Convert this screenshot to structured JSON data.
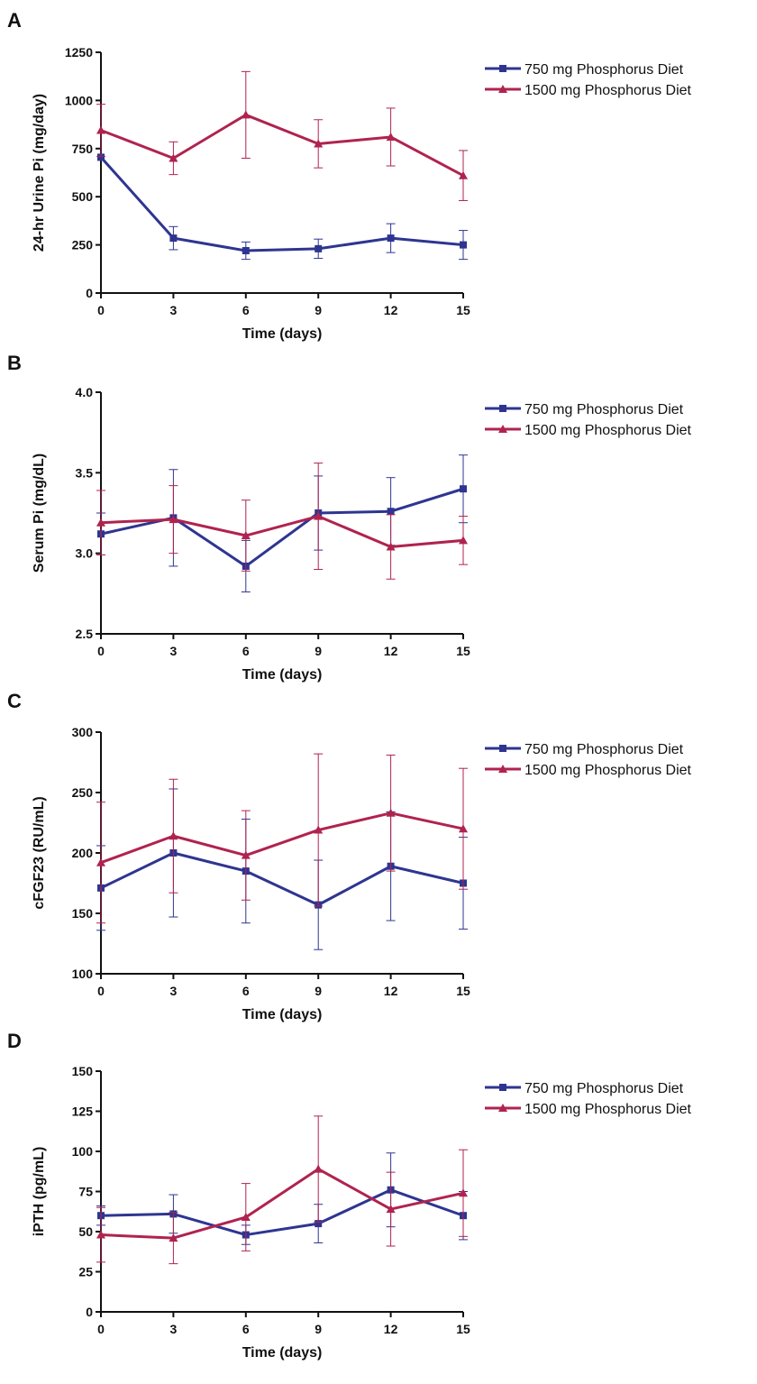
{
  "colors": {
    "s750": "#2e3590",
    "s1500": "#b0234f",
    "axis": "#111111"
  },
  "chart_data": [
    {
      "type": "line",
      "panel": "A",
      "xlabel": "Time (days)",
      "ylabel": "24-hr Urine Pi (mg/day)",
      "x": [
        0,
        3,
        6,
        9,
        12,
        15
      ],
      "x_ticks": [
        "0",
        "3",
        "6",
        "9",
        "12",
        "15"
      ],
      "xlim": [
        0,
        15
      ],
      "ylim": [
        0,
        1250
      ],
      "y_ticks": [
        0,
        250,
        500,
        750,
        1000,
        1250
      ],
      "y_tick_labels": [
        "0",
        "250",
        "500",
        "750",
        "1000",
        "1250"
      ],
      "legend_position": "top-right",
      "series": [
        {
          "name": "750 mg Phosphorus Diet",
          "marker": "square",
          "values": [
            705,
            285,
            220,
            230,
            285,
            250
          ],
          "errors": [
            0,
            60,
            45,
            50,
            75,
            75
          ]
        },
        {
          "name": "1500 mg Phosphorus Diet",
          "marker": "triangle",
          "values": [
            845,
            700,
            925,
            775,
            810,
            610
          ],
          "errors": [
            135,
            85,
            225,
            125,
            150,
            130
          ]
        }
      ]
    },
    {
      "type": "line",
      "panel": "B",
      "xlabel": "Time (days)",
      "ylabel": "Serum Pi (mg/dL)",
      "x": [
        0,
        3,
        6,
        9,
        12,
        15
      ],
      "x_ticks": [
        "0",
        "3",
        "6",
        "9",
        "12",
        "15"
      ],
      "xlim": [
        0,
        15
      ],
      "ylim": [
        2.5,
        4.0
      ],
      "y_ticks": [
        2.5,
        3.0,
        3.5,
        4.0
      ],
      "y_tick_labels": [
        "2.5",
        "3.0",
        "3.5",
        "4.0"
      ],
      "legend_position": "top-right",
      "series": [
        {
          "name": "750 mg Phosphorus Diet",
          "marker": "square",
          "values": [
            3.12,
            3.22,
            2.92,
            3.25,
            3.26,
            3.4
          ],
          "errors": [
            0.13,
            0.3,
            0.16,
            0.23,
            0.21,
            0.21
          ]
        },
        {
          "name": "1500 mg Phosphorus Diet",
          "marker": "triangle",
          "values": [
            3.19,
            3.21,
            3.11,
            3.23,
            3.04,
            3.08
          ],
          "errors": [
            0.2,
            0.21,
            0.22,
            0.33,
            0.2,
            0.15
          ]
        }
      ]
    },
    {
      "type": "line",
      "panel": "C",
      "xlabel": "Time (days)",
      "ylabel": "cFGF23 (RU/mL)",
      "x": [
        0,
        3,
        6,
        9,
        12,
        15
      ],
      "x_ticks": [
        "0",
        "3",
        "6",
        "9",
        "12",
        "15"
      ],
      "xlim": [
        0,
        15
      ],
      "ylim": [
        100,
        300
      ],
      "y_ticks": [
        100,
        150,
        200,
        250,
        300
      ],
      "y_tick_labels": [
        "100",
        "150",
        "200",
        "250",
        "300"
      ],
      "legend_position": "top-right",
      "series": [
        {
          "name": "750 mg Phosphorus Diet",
          "marker": "square",
          "values": [
            171,
            200,
            185,
            157,
            189,
            175
          ],
          "errors": [
            35,
            53,
            43,
            37,
            45,
            38
          ]
        },
        {
          "name": "1500 mg Phosphorus Diet",
          "marker": "triangle",
          "values": [
            192,
            214,
            198,
            219,
            233,
            220
          ],
          "errors": [
            50,
            47,
            37,
            63,
            48,
            50
          ]
        }
      ]
    },
    {
      "type": "line",
      "panel": "D",
      "xlabel": "Time (days)",
      "ylabel": "iPTH (pg/mL)",
      "x": [
        0,
        3,
        6,
        9,
        12,
        15
      ],
      "x_ticks": [
        "0",
        "3",
        "6",
        "9",
        "12",
        "15"
      ],
      "xlim": [
        0,
        15
      ],
      "ylim": [
        0,
        150
      ],
      "y_ticks": [
        0,
        25,
        50,
        75,
        100,
        125,
        150
      ],
      "y_tick_labels": [
        "0",
        "25",
        "50",
        "75",
        "100",
        "125",
        "150"
      ],
      "legend_position": "top-right",
      "series": [
        {
          "name": "750 mg Phosphorus Diet",
          "marker": "square",
          "values": [
            60,
            61,
            48,
            55,
            76,
            60
          ],
          "errors": [
            6,
            12,
            6,
            12,
            23,
            15
          ]
        },
        {
          "name": "1500 mg Phosphorus Diet",
          "marker": "triangle",
          "values": [
            48,
            46,
            59,
            89,
            64,
            74
          ],
          "errors": [
            17,
            16,
            21,
            33,
            23,
            27
          ]
        }
      ]
    }
  ]
}
